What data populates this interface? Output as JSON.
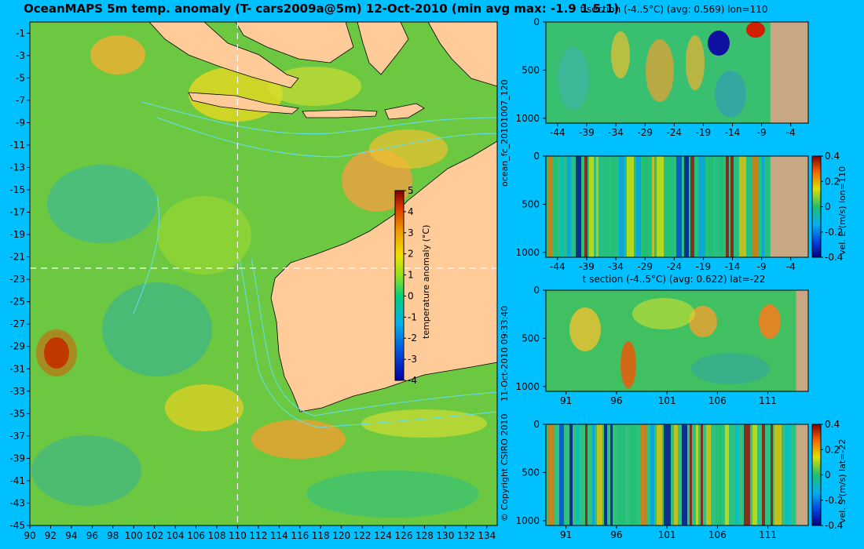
{
  "title": "OceanMAPS 5m temp. anomaly (T- cars2009a@5m) 12-Oct-2010 (min avg max: -1.9 1 5.1)",
  "side_labels": {
    "forecast": "ocean_fc_20101007_120",
    "run_time": "11-Oct-2010 09:33:40",
    "copyright": "© Copyright CSIRO 2010"
  },
  "colors": {
    "background": "#00c0ff",
    "land": "#ffcc99",
    "section_land": "#c8a882",
    "bathymetry_contours": "#60e0f0",
    "crosshair": "#ffffff"
  },
  "chart_data": [
    {
      "id": "map",
      "type": "heatmap",
      "xlabel": "",
      "ylabel": "",
      "xlim": [
        90,
        135
      ],
      "ylim": [
        -45,
        0
      ],
      "xticks": [
        90,
        92,
        94,
        96,
        98,
        100,
        102,
        104,
        106,
        108,
        110,
        112,
        114,
        116,
        118,
        120,
        122,
        124,
        126,
        128,
        130,
        132,
        134
      ],
      "yticks": [
        -1,
        -3,
        -5,
        -7,
        -9,
        -11,
        -13,
        -15,
        -17,
        -19,
        -21,
        -23,
        -25,
        -27,
        -29,
        -31,
        -33,
        -35,
        -37,
        -39,
        -41,
        -43,
        -45
      ],
      "crosshair": {
        "lon": 110,
        "lat": -22
      },
      "colorbar": {
        "label": "temperature anomaly (°C)",
        "range": [
          -4,
          5
        ],
        "ticks": [
          5,
          4,
          3,
          2,
          1,
          0,
          -1,
          -2,
          -3,
          -4
        ]
      }
    },
    {
      "id": "section-t-lon",
      "type": "heatmap",
      "title": "t section (-4..5°C) (avg: 0.569) lon=110",
      "xticks": [
        -44,
        -39,
        -34,
        -29,
        -24,
        -19,
        -14,
        -9,
        -4
      ],
      "xlim": [
        -46,
        -1
      ],
      "land_from": -7.5,
      "yticks": [
        0,
        500,
        1000
      ],
      "ylim": [
        0,
        1050
      ],
      "reversed_y": true
    },
    {
      "id": "section-v-lon",
      "type": "heatmap",
      "xticks": [
        -44,
        -39,
        -34,
        -29,
        -24,
        -19,
        -14,
        -9,
        -4
      ],
      "xlim": [
        -46,
        -1
      ],
      "land_from": -7.5,
      "yticks": [
        0,
        500,
        1000
      ],
      "ylim": [
        0,
        1050
      ],
      "reversed_y": true,
      "colorbar": {
        "label": "vel. E (m/s) lon=110",
        "range": [
          -0.4,
          0.4
        ],
        "ticks": [
          0.4,
          0.2,
          0,
          -0.2,
          -0.4
        ]
      }
    },
    {
      "id": "section-t-lat",
      "type": "heatmap",
      "title": "t section (-4..5°C) (avg: 0.622) lat=-22",
      "xticks": [
        91,
        96,
        101,
        106,
        111
      ],
      "xlim": [
        89,
        115
      ],
      "land_from": 113.8,
      "yticks": [
        0,
        500,
        1000
      ],
      "ylim": [
        0,
        1050
      ],
      "reversed_y": true
    },
    {
      "id": "section-v-lat",
      "type": "heatmap",
      "xticks": [
        91,
        96,
        101,
        106,
        111
      ],
      "xlim": [
        89,
        115
      ],
      "land_from": 113.8,
      "yticks": [
        0,
        500,
        1000
      ],
      "ylim": [
        0,
        1050
      ],
      "reversed_y": true,
      "colorbar": {
        "label": "vel. S (m/s) lat=-22",
        "range": [
          -0.4,
          0.4
        ],
        "ticks": [
          0.4,
          0.2,
          0,
          -0.2,
          -0.4
        ]
      }
    }
  ]
}
